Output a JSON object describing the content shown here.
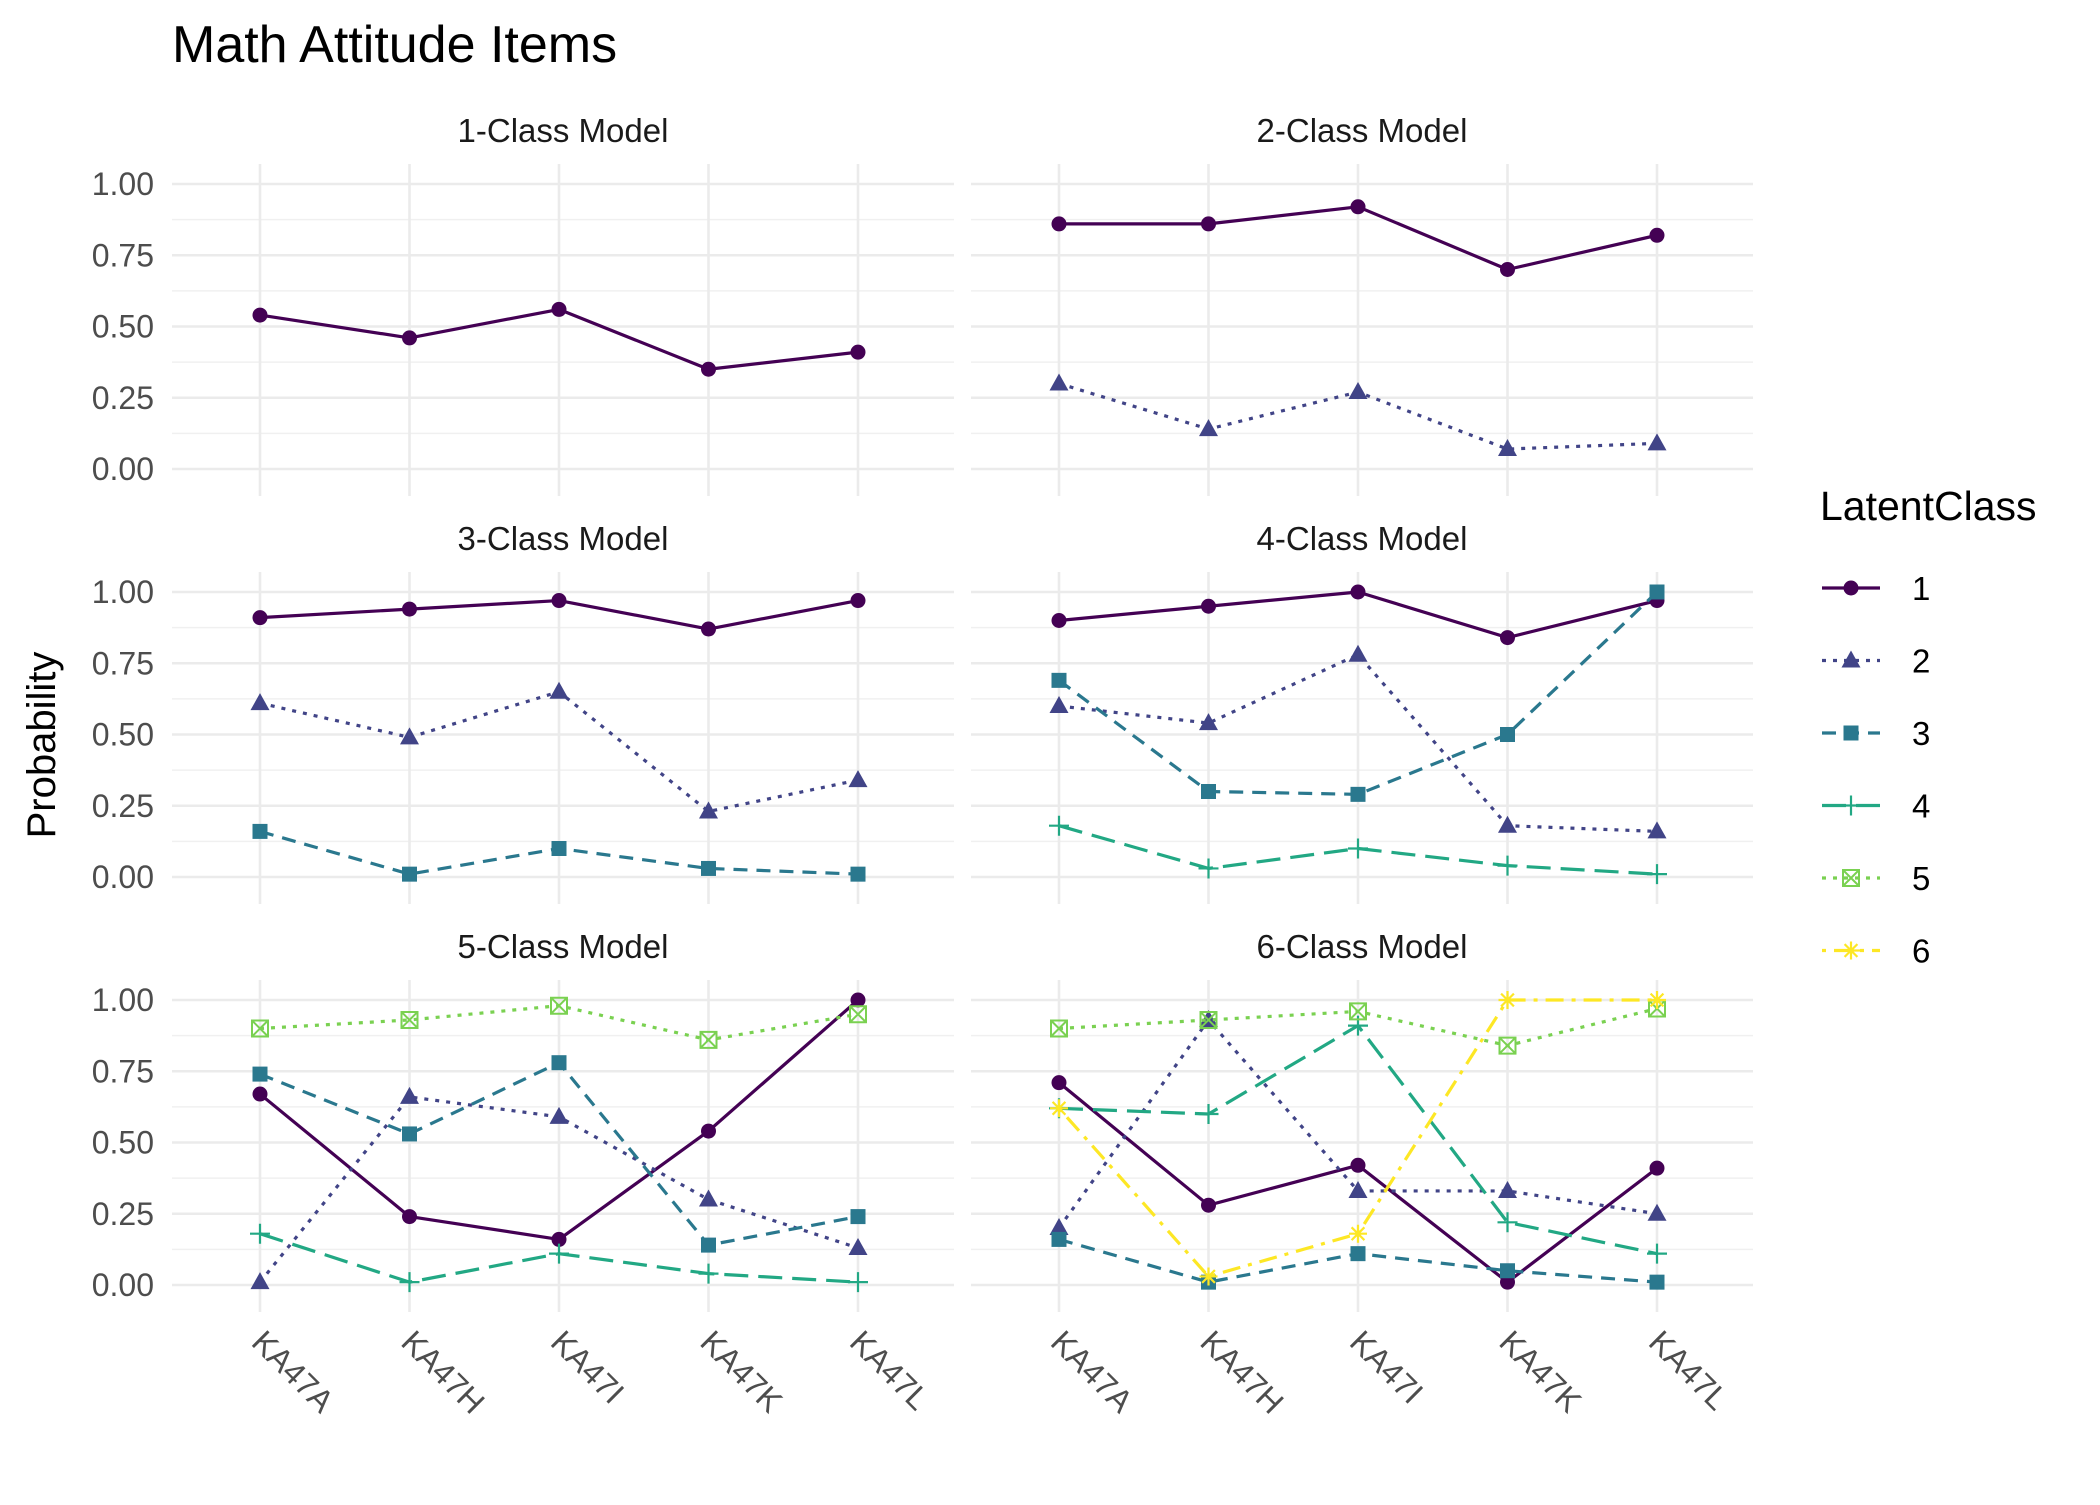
{
  "chart_data": {
    "type": "line",
    "title": "Math Attitude Items",
    "ylabel": "Probability",
    "xlabel": "",
    "categories": [
      "KA47A",
      "KA47H",
      "KA47I",
      "KA47K",
      "KA47L"
    ],
    "ylim": [
      0,
      1
    ],
    "yticks": [
      "0.00",
      "0.25",
      "0.50",
      "0.75",
      "1.00"
    ],
    "grid": true,
    "legend": {
      "title": "LatentClass",
      "position": "right",
      "classes": [
        {
          "label": "1",
          "color": "#440154",
          "linetype": "solid",
          "shape": "circle"
        },
        {
          "label": "2",
          "color": "#414487",
          "linetype": "dotted",
          "shape": "triangle"
        },
        {
          "label": "3",
          "color": "#2A788E",
          "linetype": "dashed",
          "shape": "square"
        },
        {
          "label": "4",
          "color": "#22A884",
          "linetype": "longdash",
          "shape": "plus"
        },
        {
          "label": "5",
          "color": "#7AD151",
          "linetype": "dotted",
          "shape": "square-x"
        },
        {
          "label": "6",
          "color": "#FDE725",
          "linetype": "dotdash",
          "shape": "asterisk"
        }
      ]
    },
    "panels": [
      {
        "title": "1-Class Model",
        "series": [
          {
            "class": "1",
            "values": [
              0.54,
              0.46,
              0.56,
              0.35,
              0.41
            ]
          }
        ]
      },
      {
        "title": "2-Class Model",
        "series": [
          {
            "class": "1",
            "values": [
              0.86,
              0.86,
              0.92,
              0.7,
              0.82
            ]
          },
          {
            "class": "2",
            "values": [
              0.3,
              0.14,
              0.27,
              0.07,
              0.09
            ]
          }
        ]
      },
      {
        "title": "3-Class Model",
        "series": [
          {
            "class": "1",
            "values": [
              0.91,
              0.94,
              0.97,
              0.87,
              0.97
            ]
          },
          {
            "class": "2",
            "values": [
              0.61,
              0.49,
              0.65,
              0.23,
              0.34
            ]
          },
          {
            "class": "3",
            "values": [
              0.16,
              0.01,
              0.1,
              0.03,
              0.01
            ]
          }
        ]
      },
      {
        "title": "4-Class Model",
        "series": [
          {
            "class": "1",
            "values": [
              0.9,
              0.95,
              1.0,
              0.84,
              0.97
            ]
          },
          {
            "class": "2",
            "values": [
              0.6,
              0.54,
              0.78,
              0.18,
              0.16
            ]
          },
          {
            "class": "3",
            "values": [
              0.69,
              0.3,
              0.29,
              0.5,
              1.0
            ]
          },
          {
            "class": "4",
            "values": [
              0.18,
              0.03,
              0.1,
              0.04,
              0.01
            ]
          }
        ]
      },
      {
        "title": "5-Class Model",
        "series": [
          {
            "class": "1",
            "values": [
              0.67,
              0.24,
              0.16,
              0.54,
              1.0
            ]
          },
          {
            "class": "2",
            "values": [
              0.01,
              0.66,
              0.59,
              0.3,
              0.13
            ]
          },
          {
            "class": "3",
            "values": [
              0.74,
              0.53,
              0.78,
              0.14,
              0.24
            ]
          },
          {
            "class": "4",
            "values": [
              0.18,
              0.01,
              0.11,
              0.04,
              0.01
            ]
          },
          {
            "class": "5",
            "values": [
              0.9,
              0.93,
              0.98,
              0.86,
              0.95
            ]
          }
        ]
      },
      {
        "title": "6-Class Model",
        "series": [
          {
            "class": "1",
            "values": [
              0.71,
              0.28,
              0.42,
              0.01,
              0.41
            ]
          },
          {
            "class": "2",
            "values": [
              0.2,
              0.93,
              0.33,
              0.33,
              0.25
            ]
          },
          {
            "class": "3",
            "values": [
              0.16,
              0.01,
              0.11,
              0.05,
              0.01
            ]
          },
          {
            "class": "4",
            "values": [
              0.62,
              0.6,
              0.91,
              0.22,
              0.11
            ]
          },
          {
            "class": "5",
            "values": [
              0.9,
              0.93,
              0.96,
              0.84,
              0.97
            ]
          },
          {
            "class": "6",
            "values": [
              0.62,
              0.03,
              0.18,
              1.0,
              1.0
            ]
          }
        ]
      }
    ]
  }
}
